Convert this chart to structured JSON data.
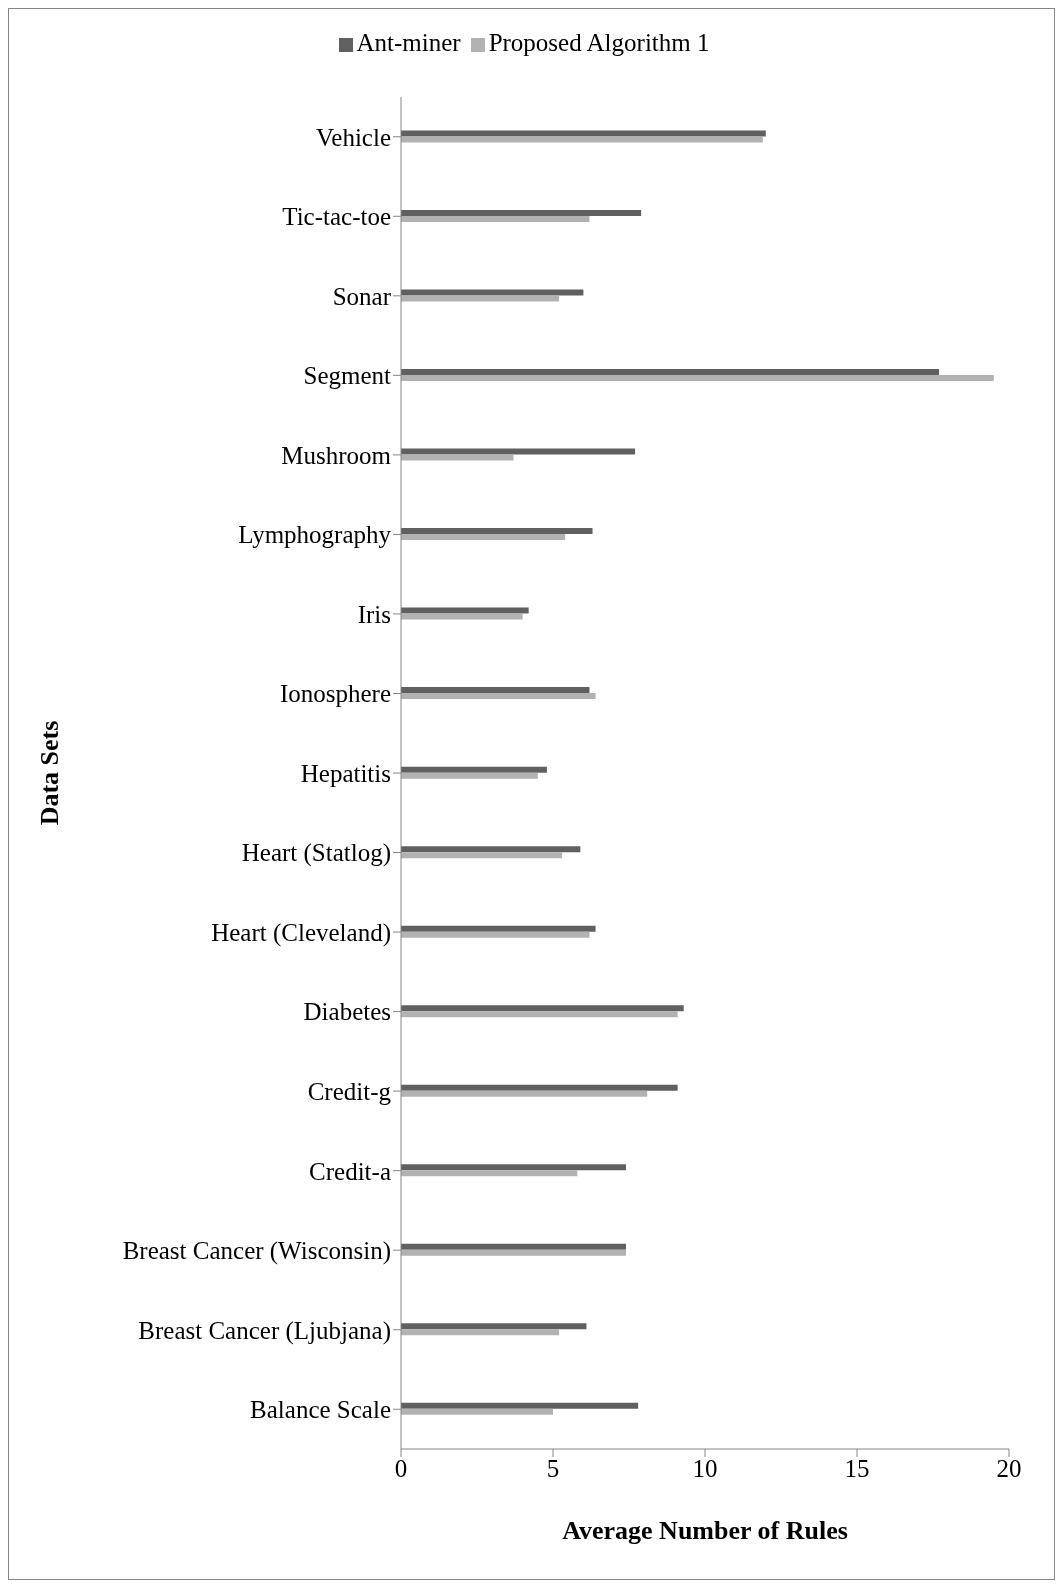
{
  "chart_data": {
    "type": "bar",
    "orientation": "horizontal",
    "xlabel": "Average Number of Rules",
    "ylabel": "Data Sets",
    "categories": [
      "Vehicle",
      "Tic-tac-toe",
      "Sonar",
      "Segment",
      "Mushroom",
      "Lymphography",
      "Iris",
      "Ionosphere",
      "Hepatitis",
      "Heart (Statlog)",
      "Heart (Cleveland)",
      "Diabetes",
      "Credit-g",
      "Credit-a",
      "Breast Cancer (Wisconsin)",
      "Breast Cancer (Ljubjana)",
      "Balance Scale"
    ],
    "series": [
      {
        "name": "Ant-miner",
        "color": "#606060",
        "values": [
          12.0,
          7.9,
          6.0,
          17.7,
          7.7,
          6.3,
          4.2,
          6.2,
          4.8,
          5.9,
          6.4,
          9.3,
          9.1,
          7.4,
          7.4,
          6.1,
          7.8
        ]
      },
      {
        "name": "Proposed Algorithm 1",
        "color": "#b2b2b2",
        "values": [
          11.9,
          6.2,
          5.2,
          19.5,
          3.7,
          5.4,
          4.0,
          6.4,
          4.5,
          5.3,
          6.2,
          9.1,
          8.1,
          5.8,
          7.4,
          5.2,
          5.0
        ]
      }
    ],
    "xlim": [
      0,
      20
    ],
    "xticks": [
      0,
      5,
      10,
      15,
      20
    ],
    "grid": false,
    "legend": "top"
  }
}
